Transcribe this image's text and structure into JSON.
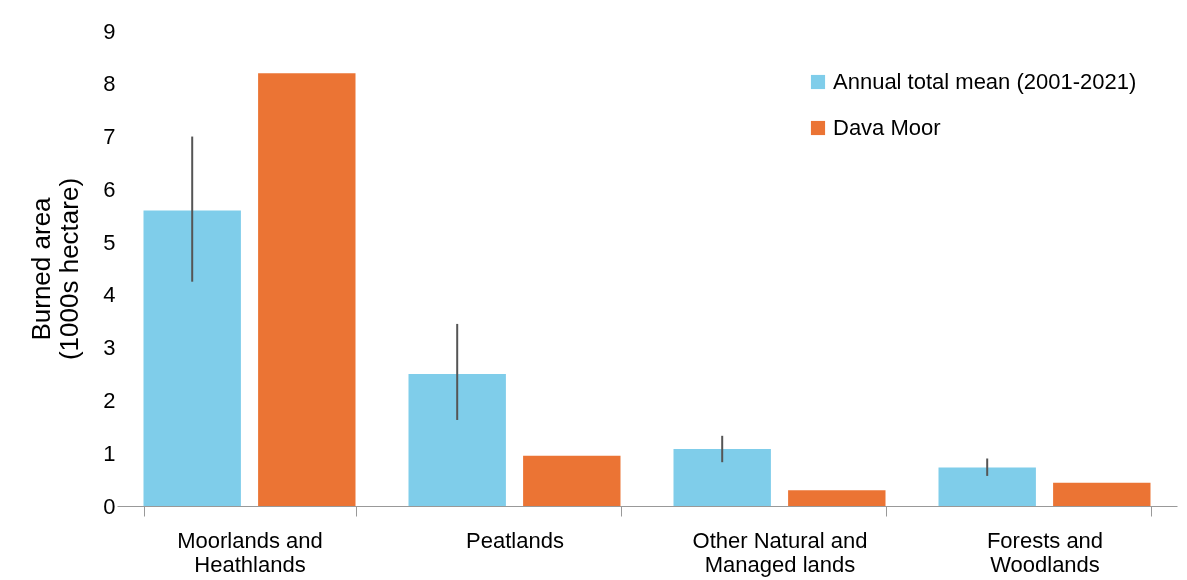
{
  "chart_data": {
    "type": "bar",
    "ylabel": "Burned area (1000s hectare)",
    "categories": [
      "Moorlands and Heathlands",
      "Peatlands",
      "Other Natural and Managed lands",
      "Forests and Woodlands"
    ],
    "ylim": [
      0,
      9
    ],
    "yticks": [
      0,
      1,
      2,
      3,
      4,
      5,
      6,
      7,
      8,
      9
    ],
    "grid": false,
    "legend": "top right",
    "series": [
      {
        "name": "Annual total mean (2001-2021)",
        "color": "#7fcdea",
        "values": [
          5.6,
          2.5,
          1.08,
          0.73
        ],
        "errors": [
          [
            4.25,
            7.0
          ],
          [
            1.63,
            3.45
          ],
          [
            0.83,
            1.33
          ],
          [
            0.57,
            0.9
          ]
        ]
      },
      {
        "name": "Dava Moor",
        "color": "#eb7434",
        "values": [
          8.2,
          0.95,
          0.3,
          0.44
        ]
      }
    ]
  }
}
